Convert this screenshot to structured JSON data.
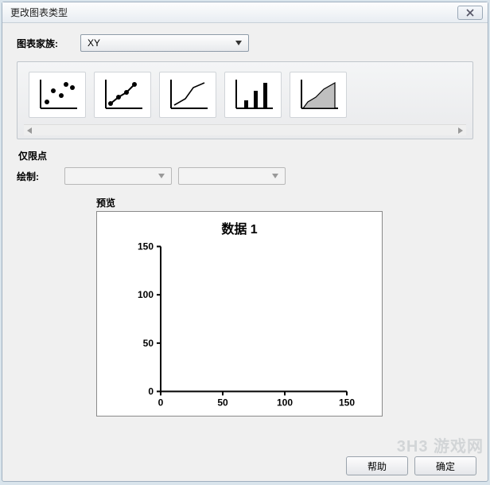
{
  "window": {
    "title": "更改图表类型"
  },
  "family": {
    "label": "图表家族:",
    "selected": "XY"
  },
  "chart_types": [
    {
      "id": "scatter",
      "name": "scatter-points"
    },
    {
      "id": "line-points",
      "name": "line-with-points"
    },
    {
      "id": "line",
      "name": "line-only"
    },
    {
      "id": "bar",
      "name": "column-bars"
    },
    {
      "id": "area",
      "name": "area-fill"
    }
  ],
  "points_only_label": "仅限点",
  "plot": {
    "label": "绘制:",
    "dropdown1": "",
    "dropdown2": ""
  },
  "preview": {
    "label": "预览",
    "chart": {
      "title": "数据 1",
      "type": "scatter",
      "x": {
        "min": 0,
        "max": 150,
        "ticks": [
          0,
          50,
          100,
          150
        ]
      },
      "y": {
        "min": 0,
        "max": 150,
        "ticks": [
          0,
          50,
          100,
          150
        ]
      },
      "axis_color": "#000000",
      "tick_font_size": 12,
      "title_font_size": 16,
      "background": "#ffffff",
      "data_points": []
    }
  },
  "buttons": {
    "help": "帮助",
    "ok": "确定"
  },
  "watermark": "3H3 游戏网",
  "colors": {
    "dialog_bg": "#f0f0f0",
    "outer_bg": "#d9e4ec",
    "border": "#a0b0c0"
  }
}
